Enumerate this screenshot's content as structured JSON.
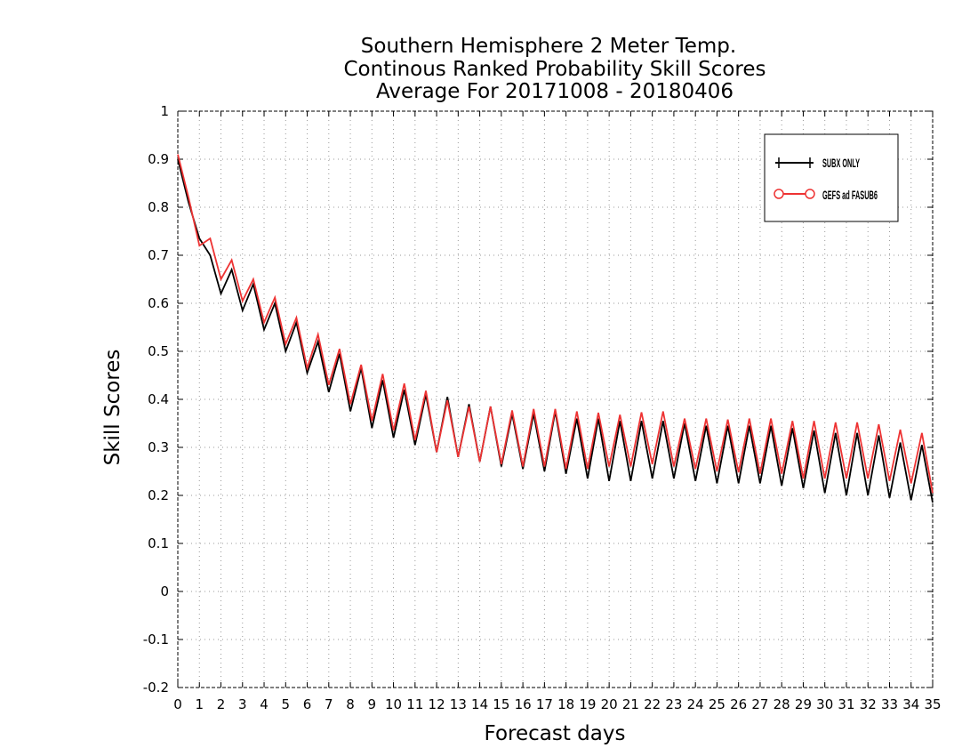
{
  "chart_data": {
    "type": "line",
    "title": [
      "Southern Hemisphere 2 Meter Temp.",
      "Continous Ranked Probability Skill Scores",
      "Average For 20171008 - 20180406"
    ],
    "xlabel": "Forecast days",
    "ylabel": "Skill Scores",
    "xlim": [
      0,
      35
    ],
    "ylim": [
      -0.2,
      1
    ],
    "yticks": [
      -0.2,
      -0.1,
      0,
      0.1,
      0.2,
      0.3,
      0.4,
      0.5,
      0.6,
      0.7,
      0.8,
      0.9,
      1
    ],
    "ytick_labels": [
      "-0.2",
      "-0.1",
      "0",
      "0.1",
      "0.2",
      "0.3",
      "0.4",
      "0.5",
      "0.6",
      "0.7",
      "0.8",
      "0.9",
      "1"
    ],
    "xtick_labels": [
      "0",
      "1",
      "2",
      "3",
      "4",
      "5",
      "6",
      "7",
      "8",
      "9",
      "10",
      "11",
      "12",
      "13",
      "14",
      "15",
      "16",
      "17",
      "18",
      "19",
      "20",
      "21",
      "22",
      "23",
      "24",
      "25",
      "26",
      "27",
      "28",
      "29",
      "30",
      "31",
      "32",
      "33",
      "34",
      "35"
    ],
    "grid": true,
    "legend_position": "top-right",
    "series": [
      {
        "name": "SUBX ONLY",
        "color": "#000000",
        "marker": "plus",
        "x": [
          0,
          0.5,
          1,
          1.5,
          2,
          2.5,
          3,
          3.5,
          4,
          4.5,
          5,
          5.5,
          6,
          6.5,
          7,
          7.5,
          8,
          8.5,
          9,
          9.5,
          10,
          10.5,
          11,
          11.5,
          12,
          12.5,
          13,
          13.5,
          14,
          14.5,
          15,
          15.5,
          16,
          16.5,
          17,
          17.5,
          18,
          18.5,
          19,
          19.5,
          20,
          20.5,
          21,
          21.5,
          22,
          22.5,
          23,
          23.5,
          24,
          24.5,
          25,
          25.5,
          26,
          26.5,
          27,
          27.5,
          28,
          28.5,
          29,
          29.5,
          30,
          30.5,
          31,
          31.5,
          32,
          32.5,
          33,
          33.5,
          34,
          34.5,
          35
        ],
        "values": [
          0.9,
          0.81,
          0.735,
          0.7,
          0.62,
          0.67,
          0.585,
          0.64,
          0.545,
          0.6,
          0.5,
          0.56,
          0.455,
          0.52,
          0.415,
          0.495,
          0.375,
          0.465,
          0.34,
          0.44,
          0.32,
          0.42,
          0.305,
          0.41,
          0.29,
          0.405,
          0.28,
          0.39,
          0.27,
          0.385,
          0.26,
          0.37,
          0.255,
          0.37,
          0.25,
          0.375,
          0.245,
          0.36,
          0.235,
          0.36,
          0.23,
          0.355,
          0.23,
          0.355,
          0.235,
          0.355,
          0.235,
          0.35,
          0.23,
          0.345,
          0.225,
          0.345,
          0.225,
          0.345,
          0.225,
          0.345,
          0.22,
          0.34,
          0.215,
          0.335,
          0.205,
          0.33,
          0.2,
          0.33,
          0.2,
          0.325,
          0.195,
          0.31,
          0.19,
          0.305,
          0.185
        ]
      },
      {
        "name": "GEFS ad FASUB6",
        "color": "#ee3333",
        "marker": "circle",
        "x": [
          0,
          0.5,
          1,
          1.5,
          2,
          2.5,
          3,
          3.5,
          4,
          4.5,
          5,
          5.5,
          6,
          6.5,
          7,
          7.5,
          8,
          8.5,
          9,
          9.5,
          10,
          10.5,
          11,
          11.5,
          12,
          12.5,
          13,
          13.5,
          14,
          14.5,
          15,
          15.5,
          16,
          16.5,
          17,
          17.5,
          18,
          18.5,
          19,
          19.5,
          20,
          20.5,
          21,
          21.5,
          22,
          22.5,
          23,
          23.5,
          24,
          24.5,
          25,
          25.5,
          26,
          26.5,
          27,
          27.5,
          28,
          28.5,
          29,
          29.5,
          30,
          30.5,
          31,
          31.5,
          32,
          32.5,
          33,
          33.5,
          34,
          34.5,
          35
        ],
        "values": [
          0.91,
          0.82,
          0.72,
          0.735,
          0.65,
          0.69,
          0.605,
          0.65,
          0.56,
          0.612,
          0.515,
          0.57,
          0.465,
          0.535,
          0.43,
          0.505,
          0.39,
          0.472,
          0.355,
          0.453,
          0.335,
          0.433,
          0.315,
          0.418,
          0.29,
          0.398,
          0.28,
          0.385,
          0.27,
          0.385,
          0.265,
          0.377,
          0.26,
          0.38,
          0.26,
          0.38,
          0.255,
          0.375,
          0.255,
          0.372,
          0.26,
          0.368,
          0.26,
          0.373,
          0.265,
          0.375,
          0.26,
          0.36,
          0.255,
          0.36,
          0.25,
          0.358,
          0.248,
          0.36,
          0.245,
          0.36,
          0.245,
          0.355,
          0.235,
          0.355,
          0.235,
          0.352,
          0.235,
          0.352,
          0.235,
          0.348,
          0.23,
          0.337,
          0.225,
          0.33,
          0.205
        ]
      }
    ]
  }
}
